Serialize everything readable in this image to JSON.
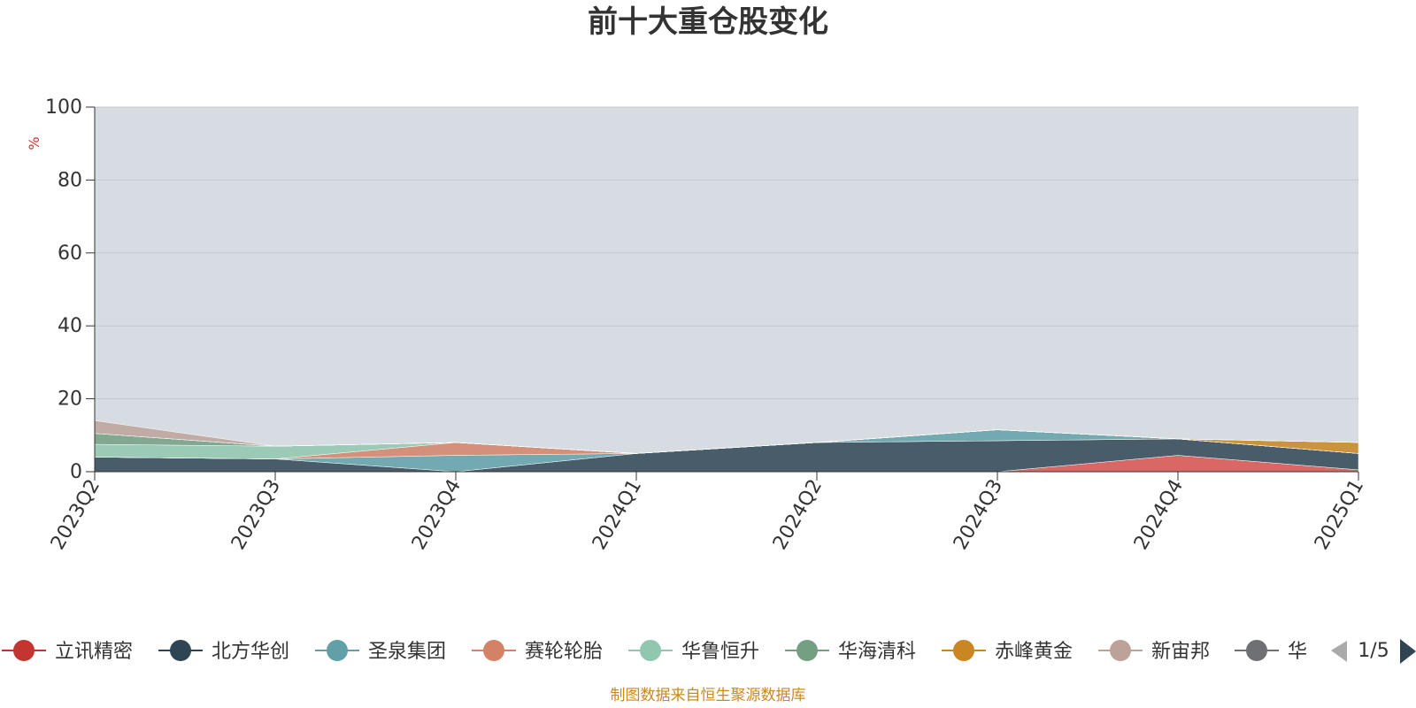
{
  "chart_data": {
    "type": "area",
    "title": "前十大重仓股变化",
    "ylabel": "%",
    "ylim": [
      0,
      100
    ],
    "yticks": [
      0,
      20,
      40,
      60,
      80,
      100
    ],
    "grid": true,
    "x": [
      "2023Q2",
      "2023Q3",
      "2023Q4",
      "2024Q1",
      "2024Q2",
      "2024Q3",
      "2024Q4",
      "2025Q1"
    ],
    "series": [
      {
        "name": "立讯精密",
        "color": "#d9534f",
        "values": [
          0,
          0,
          0,
          0,
          0,
          0,
          4.5,
          0.5
        ]
      },
      {
        "name": "北方华创",
        "color": "#2f4554",
        "values": [
          4,
          3.5,
          0,
          5,
          8,
          8.5,
          4.5,
          4.5
        ]
      },
      {
        "name": "圣泉集团",
        "color": "#61a0a8",
        "values": [
          0,
          0,
          4.5,
          0,
          0,
          3,
          0,
          0
        ]
      },
      {
        "name": "赛轮轮胎",
        "color": "#d48265",
        "values": [
          0,
          0,
          3.5,
          0,
          0,
          0,
          0,
          0
        ]
      },
      {
        "name": "华鲁恒升",
        "color": "#91c7ae",
        "values": [
          3.5,
          3.5,
          0,
          0,
          0,
          0,
          0,
          0
        ]
      },
      {
        "name": "华海清科",
        "color": "#749f83",
        "values": [
          3,
          0,
          0,
          0,
          0,
          0,
          0,
          0
        ]
      },
      {
        "name": "赤峰黄金",
        "color": "#ca8622",
        "values": [
          0,
          0,
          0,
          0,
          0,
          0,
          0,
          3
        ]
      },
      {
        "name": "新宙邦",
        "color": "#bda29a",
        "values": [
          3.5,
          0,
          0,
          0,
          0,
          0,
          0,
          0
        ]
      }
    ],
    "background_area_color": "#d7dce3"
  },
  "legend": {
    "items": [
      {
        "label": "立讯精密",
        "color": "#c23531"
      },
      {
        "label": "北方华创",
        "color": "#2f4554"
      },
      {
        "label": "圣泉集团",
        "color": "#61a0a8"
      },
      {
        "label": "赛轮轮胎",
        "color": "#d48265"
      },
      {
        "label": "华鲁恒升",
        "color": "#91c7ae"
      },
      {
        "label": "华海清科",
        "color": "#749f83"
      },
      {
        "label": "赤峰黄金",
        "color": "#ca8622"
      },
      {
        "label": "新宙邦",
        "color": "#bda29a"
      },
      {
        "label": "华",
        "color": "#6e7074"
      }
    ],
    "page": "1/5"
  },
  "source_text": "制图数据来自恒生聚源数据库"
}
